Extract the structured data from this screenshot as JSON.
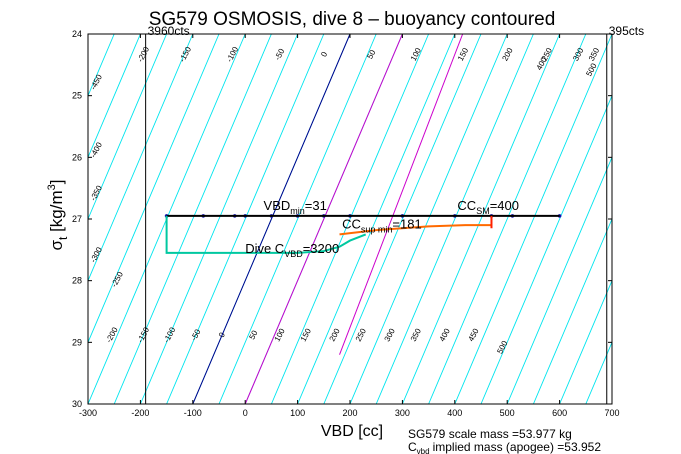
{
  "chart_data": {
    "type": "scatter",
    "title": "SG579 OSMOSIS, dive 8 – buoyancy contoured",
    "xlabel": "VBD [cc]",
    "ylabel_main": "σ",
    "ylabel_sub": "t",
    "ylabel_unit": " [kg/m",
    "ylabel_sup": "3",
    "ylabel_close": "]",
    "xlim": [
      -300,
      700
    ],
    "ylim": [
      24,
      30
    ],
    "y_inverted": true,
    "grid": false,
    "x_ticks": [
      -300,
      -200,
      -100,
      0,
      100,
      200,
      300,
      400,
      500,
      600,
      700
    ],
    "y_ticks": [
      24,
      25,
      26,
      27,
      28,
      29,
      30
    ],
    "vertical_limits": [
      {
        "x": -190,
        "label": "3960cts",
        "color": "#000000"
      },
      {
        "x": 690,
        "label": "395cts",
        "color": "#000000"
      }
    ],
    "buoyancy_contours": {
      "color": "#00e5ee",
      "values": [
        -450,
        -400,
        -350,
        -300,
        -250,
        -200,
        -150,
        -100,
        -50,
        0,
        50,
        100,
        150,
        200,
        250,
        300,
        350,
        400,
        450,
        500,
        550,
        600
      ],
      "top_labels": [
        {
          "value": "-200",
          "x": -190
        },
        {
          "value": "-150",
          "x": -110
        },
        {
          "value": "-100",
          "x": -20
        },
        {
          "value": "-50",
          "x": 70
        },
        {
          "value": "0",
          "x": 155
        },
        {
          "value": "50",
          "x": 245
        },
        {
          "value": "100",
          "x": 330
        },
        {
          "value": "150",
          "x": 420
        },
        {
          "value": "200",
          "x": 505
        },
        {
          "value": "250",
          "x": 580
        },
        {
          "value": "300",
          "x": 640
        },
        {
          "value": "350",
          "x": 670
        }
      ],
      "left_labels": [
        {
          "value": "-450",
          "sigma": 24.8
        },
        {
          "value": "-400",
          "sigma": 25.9
        },
        {
          "value": "-350",
          "sigma": 26.6
        },
        {
          "value": "-300",
          "sigma": 27.6
        }
      ],
      "top_labels_right": [
        {
          "value": "400",
          "x": 570,
          "sigma": 24.5
        },
        {
          "value": "500",
          "x": 665,
          "sigma": 24.6
        }
      ],
      "lower_labels": [
        {
          "value": "-250",
          "x": -240,
          "sigma": 28.0
        },
        {
          "value": "-200",
          "x": -250,
          "sigma": 28.9
        },
        {
          "value": "-150",
          "x": -190,
          "sigma": 28.9
        },
        {
          "value": "-100",
          "x": -140,
          "sigma": 28.9
        },
        {
          "value": "-50",
          "x": -90,
          "sigma": 28.9
        },
        {
          "value": "0",
          "x": -40,
          "sigma": 28.9
        },
        {
          "value": "50",
          "x": 20,
          "sigma": 28.9
        },
        {
          "value": "100",
          "x": 70,
          "sigma": 28.9
        },
        {
          "value": "150",
          "x": 120,
          "sigma": 28.9
        },
        {
          "value": "200",
          "x": 175,
          "sigma": 28.9
        },
        {
          "value": "250",
          "x": 225,
          "sigma": 28.9
        },
        {
          "value": "300",
          "x": 280,
          "sigma": 28.9
        },
        {
          "value": "350",
          "x": 330,
          "sigma": 28.9
        },
        {
          "value": "400",
          "x": 385,
          "sigma": 28.9
        },
        {
          "value": "450",
          "x": 440,
          "sigma": 28.9
        },
        {
          "value": "500",
          "x": 495,
          "sigma": 29.1
        }
      ]
    },
    "reference_lines": [
      {
        "name": "",
        "color": "#00008b",
        "points": [
          [
            -100,
            30
          ],
          [
            200,
            24
          ]
        ]
      },
      {
        "name": "",
        "color": "#cc00cc",
        "points": [
          [
            0,
            30
          ],
          [
            300,
            24
          ]
        ]
      },
      {
        "name": "",
        "color": "#cc00cc",
        "points": [
          [
            180,
            29.2
          ],
          [
            415,
            24
          ]
        ]
      }
    ],
    "series": [
      {
        "name": "",
        "color": "#1010b0",
        "style": "line-markers",
        "points": [
          [
            -150,
            26.95
          ],
          [
            -80,
            26.95
          ],
          [
            -20,
            26.95
          ],
          [
            0,
            26.95
          ],
          [
            50,
            26.95
          ],
          [
            100,
            26.95
          ],
          [
            150,
            26.95
          ],
          [
            200,
            26.95
          ],
          [
            300,
            26.95
          ],
          [
            400,
            26.95
          ],
          [
            470,
            26.95
          ],
          [
            510,
            26.95
          ],
          [
            600,
            26.95
          ]
        ]
      },
      {
        "name": "",
        "color": "#000000",
        "style": "line",
        "points": [
          [
            -150,
            26.95
          ],
          [
            600,
            26.95
          ]
        ]
      },
      {
        "name": "",
        "color": "#ff6a00",
        "style": "line",
        "points": [
          [
            180,
            27.25
          ],
          [
            250,
            27.18
          ],
          [
            350,
            27.12
          ],
          [
            420,
            27.1
          ],
          [
            470,
            27.1
          ]
        ]
      },
      {
        "name": "",
        "color": "#ff2000",
        "style": "line",
        "points": [
          [
            470,
            26.95
          ],
          [
            470,
            27.15
          ]
        ]
      },
      {
        "name": "",
        "color": "#00c8a0",
        "style": "line",
        "points": [
          [
            -150,
            26.95
          ],
          [
            -150,
            27.55
          ],
          [
            -100,
            27.55
          ],
          [
            0,
            27.55
          ],
          [
            100,
            27.55
          ],
          [
            150,
            27.52
          ],
          [
            180,
            27.45
          ],
          [
            200,
            27.35
          ],
          [
            230,
            27.25
          ]
        ]
      }
    ],
    "annotations": [
      {
        "text": "VBD",
        "sub": "min",
        "tail": "=31",
        "x": 35,
        "sigma": 26.85,
        "color": "#cc0000"
      },
      {
        "text": "CC",
        "sub": "sup min",
        "tail": "=181",
        "x": 185,
        "sigma": 27.15,
        "color": "#cc0000"
      },
      {
        "text": "CC",
        "sub": "SM",
        "tail": "=400",
        "x": 405,
        "sigma": 26.85,
        "color": "#cc0000"
      },
      {
        "text": "Dive C",
        "sub": "VBD",
        "tail": "=3200",
        "x": 0,
        "sigma": 27.55,
        "color": "#000000"
      }
    ],
    "footer_lines": [
      "SG579 scale mass =53.977 kg",
      "implied mass (apogee) =53.952"
    ],
    "footer_prefix": "C",
    "footer_prefix_sub": "vbd"
  }
}
